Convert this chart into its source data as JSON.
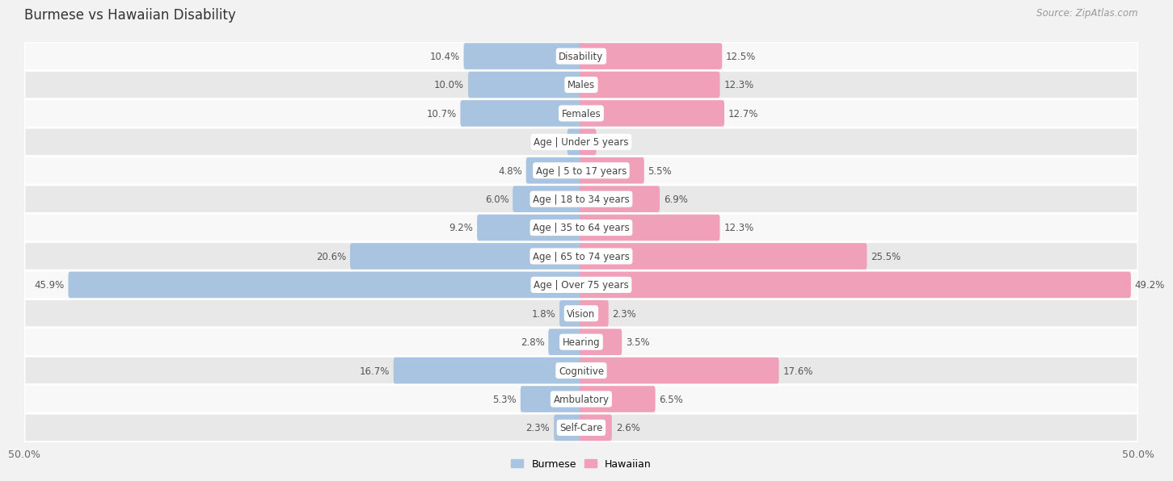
{
  "title": "Burmese vs Hawaiian Disability",
  "source": "Source: ZipAtlas.com",
  "categories": [
    "Disability",
    "Males",
    "Females",
    "Age | Under 5 years",
    "Age | 5 to 17 years",
    "Age | 18 to 34 years",
    "Age | 35 to 64 years",
    "Age | 65 to 74 years",
    "Age | Over 75 years",
    "Vision",
    "Hearing",
    "Cognitive",
    "Ambulatory",
    "Self-Care"
  ],
  "burmese": [
    10.4,
    10.0,
    10.7,
    1.1,
    4.8,
    6.0,
    9.2,
    20.6,
    45.9,
    1.8,
    2.8,
    16.7,
    5.3,
    2.3
  ],
  "hawaiian": [
    12.5,
    12.3,
    12.7,
    1.2,
    5.5,
    6.9,
    12.3,
    25.5,
    49.2,
    2.3,
    3.5,
    17.6,
    6.5,
    2.6
  ],
  "burmese_color": "#a8c4e0",
  "hawaiian_color": "#f0a0b8",
  "xlim": 50.0,
  "bg_color": "#f2f2f2",
  "row_bg_light": "#f8f8f8",
  "row_bg_dark": "#e8e8e8",
  "title_fontsize": 12,
  "label_fontsize": 8.5,
  "value_fontsize": 8.5,
  "source_fontsize": 8.5
}
